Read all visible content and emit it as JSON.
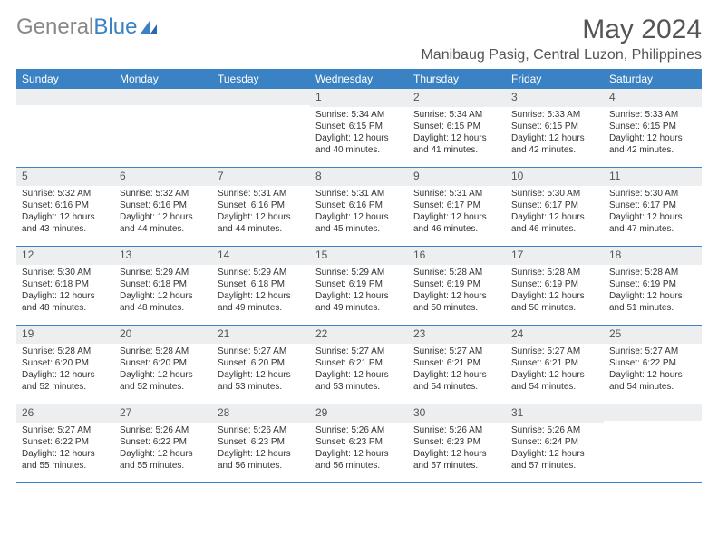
{
  "logo": {
    "text1": "General",
    "text2": "Blue"
  },
  "title": "May 2024",
  "location": "Manibaug Pasig, Central Luzon, Philippines",
  "colors": {
    "header_bg": "#3b82c4",
    "header_text": "#ffffff",
    "daynum_bg": "#eceeef",
    "text": "#333333",
    "page_bg": "#ffffff"
  },
  "day_names": [
    "Sunday",
    "Monday",
    "Tuesday",
    "Wednesday",
    "Thursday",
    "Friday",
    "Saturday"
  ],
  "weeks": [
    [
      null,
      null,
      null,
      {
        "n": "1",
        "sunrise": "5:34 AM",
        "sunset": "6:15 PM",
        "daylight": "12 hours and 40 minutes."
      },
      {
        "n": "2",
        "sunrise": "5:34 AM",
        "sunset": "6:15 PM",
        "daylight": "12 hours and 41 minutes."
      },
      {
        "n": "3",
        "sunrise": "5:33 AM",
        "sunset": "6:15 PM",
        "daylight": "12 hours and 42 minutes."
      },
      {
        "n": "4",
        "sunrise": "5:33 AM",
        "sunset": "6:15 PM",
        "daylight": "12 hours and 42 minutes."
      }
    ],
    [
      {
        "n": "5",
        "sunrise": "5:32 AM",
        "sunset": "6:16 PM",
        "daylight": "12 hours and 43 minutes."
      },
      {
        "n": "6",
        "sunrise": "5:32 AM",
        "sunset": "6:16 PM",
        "daylight": "12 hours and 44 minutes."
      },
      {
        "n": "7",
        "sunrise": "5:31 AM",
        "sunset": "6:16 PM",
        "daylight": "12 hours and 44 minutes."
      },
      {
        "n": "8",
        "sunrise": "5:31 AM",
        "sunset": "6:16 PM",
        "daylight": "12 hours and 45 minutes."
      },
      {
        "n": "9",
        "sunrise": "5:31 AM",
        "sunset": "6:17 PM",
        "daylight": "12 hours and 46 minutes."
      },
      {
        "n": "10",
        "sunrise": "5:30 AM",
        "sunset": "6:17 PM",
        "daylight": "12 hours and 46 minutes."
      },
      {
        "n": "11",
        "sunrise": "5:30 AM",
        "sunset": "6:17 PM",
        "daylight": "12 hours and 47 minutes."
      }
    ],
    [
      {
        "n": "12",
        "sunrise": "5:30 AM",
        "sunset": "6:18 PM",
        "daylight": "12 hours and 48 minutes."
      },
      {
        "n": "13",
        "sunrise": "5:29 AM",
        "sunset": "6:18 PM",
        "daylight": "12 hours and 48 minutes."
      },
      {
        "n": "14",
        "sunrise": "5:29 AM",
        "sunset": "6:18 PM",
        "daylight": "12 hours and 49 minutes."
      },
      {
        "n": "15",
        "sunrise": "5:29 AM",
        "sunset": "6:19 PM",
        "daylight": "12 hours and 49 minutes."
      },
      {
        "n": "16",
        "sunrise": "5:28 AM",
        "sunset": "6:19 PM",
        "daylight": "12 hours and 50 minutes."
      },
      {
        "n": "17",
        "sunrise": "5:28 AM",
        "sunset": "6:19 PM",
        "daylight": "12 hours and 50 minutes."
      },
      {
        "n": "18",
        "sunrise": "5:28 AM",
        "sunset": "6:19 PM",
        "daylight": "12 hours and 51 minutes."
      }
    ],
    [
      {
        "n": "19",
        "sunrise": "5:28 AM",
        "sunset": "6:20 PM",
        "daylight": "12 hours and 52 minutes."
      },
      {
        "n": "20",
        "sunrise": "5:28 AM",
        "sunset": "6:20 PM",
        "daylight": "12 hours and 52 minutes."
      },
      {
        "n": "21",
        "sunrise": "5:27 AM",
        "sunset": "6:20 PM",
        "daylight": "12 hours and 53 minutes."
      },
      {
        "n": "22",
        "sunrise": "5:27 AM",
        "sunset": "6:21 PM",
        "daylight": "12 hours and 53 minutes."
      },
      {
        "n": "23",
        "sunrise": "5:27 AM",
        "sunset": "6:21 PM",
        "daylight": "12 hours and 54 minutes."
      },
      {
        "n": "24",
        "sunrise": "5:27 AM",
        "sunset": "6:21 PM",
        "daylight": "12 hours and 54 minutes."
      },
      {
        "n": "25",
        "sunrise": "5:27 AM",
        "sunset": "6:22 PM",
        "daylight": "12 hours and 54 minutes."
      }
    ],
    [
      {
        "n": "26",
        "sunrise": "5:27 AM",
        "sunset": "6:22 PM",
        "daylight": "12 hours and 55 minutes."
      },
      {
        "n": "27",
        "sunrise": "5:26 AM",
        "sunset": "6:22 PM",
        "daylight": "12 hours and 55 minutes."
      },
      {
        "n": "28",
        "sunrise": "5:26 AM",
        "sunset": "6:23 PM",
        "daylight": "12 hours and 56 minutes."
      },
      {
        "n": "29",
        "sunrise": "5:26 AM",
        "sunset": "6:23 PM",
        "daylight": "12 hours and 56 minutes."
      },
      {
        "n": "30",
        "sunrise": "5:26 AM",
        "sunset": "6:23 PM",
        "daylight": "12 hours and 57 minutes."
      },
      {
        "n": "31",
        "sunrise": "5:26 AM",
        "sunset": "6:24 PM",
        "daylight": "12 hours and 57 minutes."
      },
      null
    ]
  ],
  "labels": {
    "sunrise": "Sunrise:",
    "sunset": "Sunset:",
    "daylight": "Daylight:"
  }
}
